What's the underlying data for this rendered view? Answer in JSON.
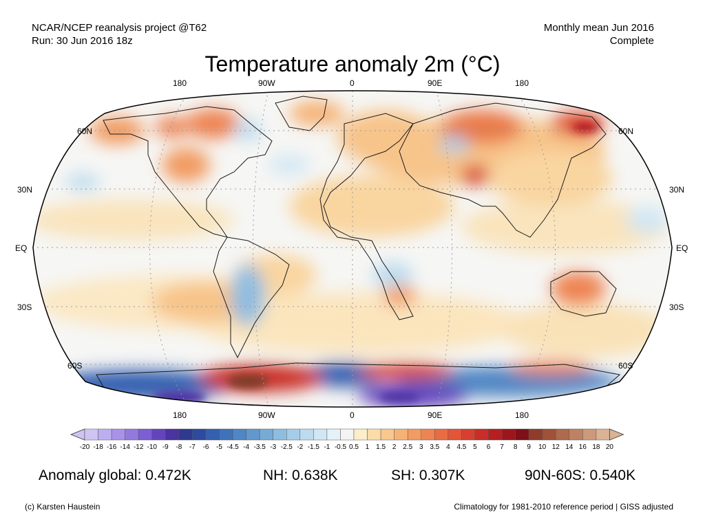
{
  "header": {
    "left_line1": "NCAR/NCEP reanalysis project @T62",
    "left_line2": "Run: 30 Jun 2016 18z",
    "right_line1": "Monthly mean Jun 2016",
    "right_line2": "Complete"
  },
  "title": "Temperature anomaly 2m (°C)",
  "map": {
    "projection": "Robinson",
    "lon_labels": [
      "180",
      "90W",
      "0",
      "90E",
      "180"
    ],
    "lat_labels_left": [
      "60N",
      "30N",
      "EQ",
      "30S",
      "60S"
    ],
    "lat_labels_right": [
      "60N",
      "30N",
      "EQ",
      "30S",
      "60S"
    ]
  },
  "colorbar": {
    "ticks": [
      "-20",
      "-18",
      "-16",
      "-14",
      "-12",
      "-10",
      "-9",
      "-8",
      "-7",
      "-6",
      "-5",
      "-4.5",
      "-4",
      "-3.5",
      "-3",
      "-2.5",
      "-2",
      "-1.5",
      "-1",
      "-0.5",
      "0.5",
      "1",
      "1.5",
      "2",
      "2.5",
      "3",
      "3.5",
      "4",
      "4.5",
      "5",
      "6",
      "7",
      "8",
      "9",
      "10",
      "12",
      "14",
      "16",
      "18",
      "20"
    ],
    "colors": [
      "#cfc4f3",
      "#bcaeef",
      "#a892e8",
      "#9379de",
      "#7b5fd3",
      "#6444bd",
      "#4b33a2",
      "#2f3a8f",
      "#2e4aa0",
      "#3560b0",
      "#3f72bb",
      "#4f86c4",
      "#6199cd",
      "#77abd6",
      "#8fbde0",
      "#a6cde8",
      "#bcdbee",
      "#d1e7f4",
      "#e4f1f8",
      "#f4f4f4",
      "#fbeec8",
      "#fbdca8",
      "#f9c88e",
      "#f6b175",
      "#f29b62",
      "#ee8452",
      "#e96c43",
      "#e15538",
      "#d7402f",
      "#c92d28",
      "#b51f22",
      "#9d161c",
      "#7d1018",
      "#8f3c2a",
      "#9d5239",
      "#ad6a4d",
      "#bd8263",
      "#cc9a7b",
      "#dab294"
    ]
  },
  "stats": {
    "global": "Anomaly global: 0.472K",
    "nh": "NH: 0.638K",
    "sh": "SH: 0.307K",
    "arctic": "90N-60S: 0.540K"
  },
  "footer": {
    "credit": "(c) Karsten Haustein",
    "note": "Climatology for 1981-2010 reference period | GISS adjusted"
  }
}
